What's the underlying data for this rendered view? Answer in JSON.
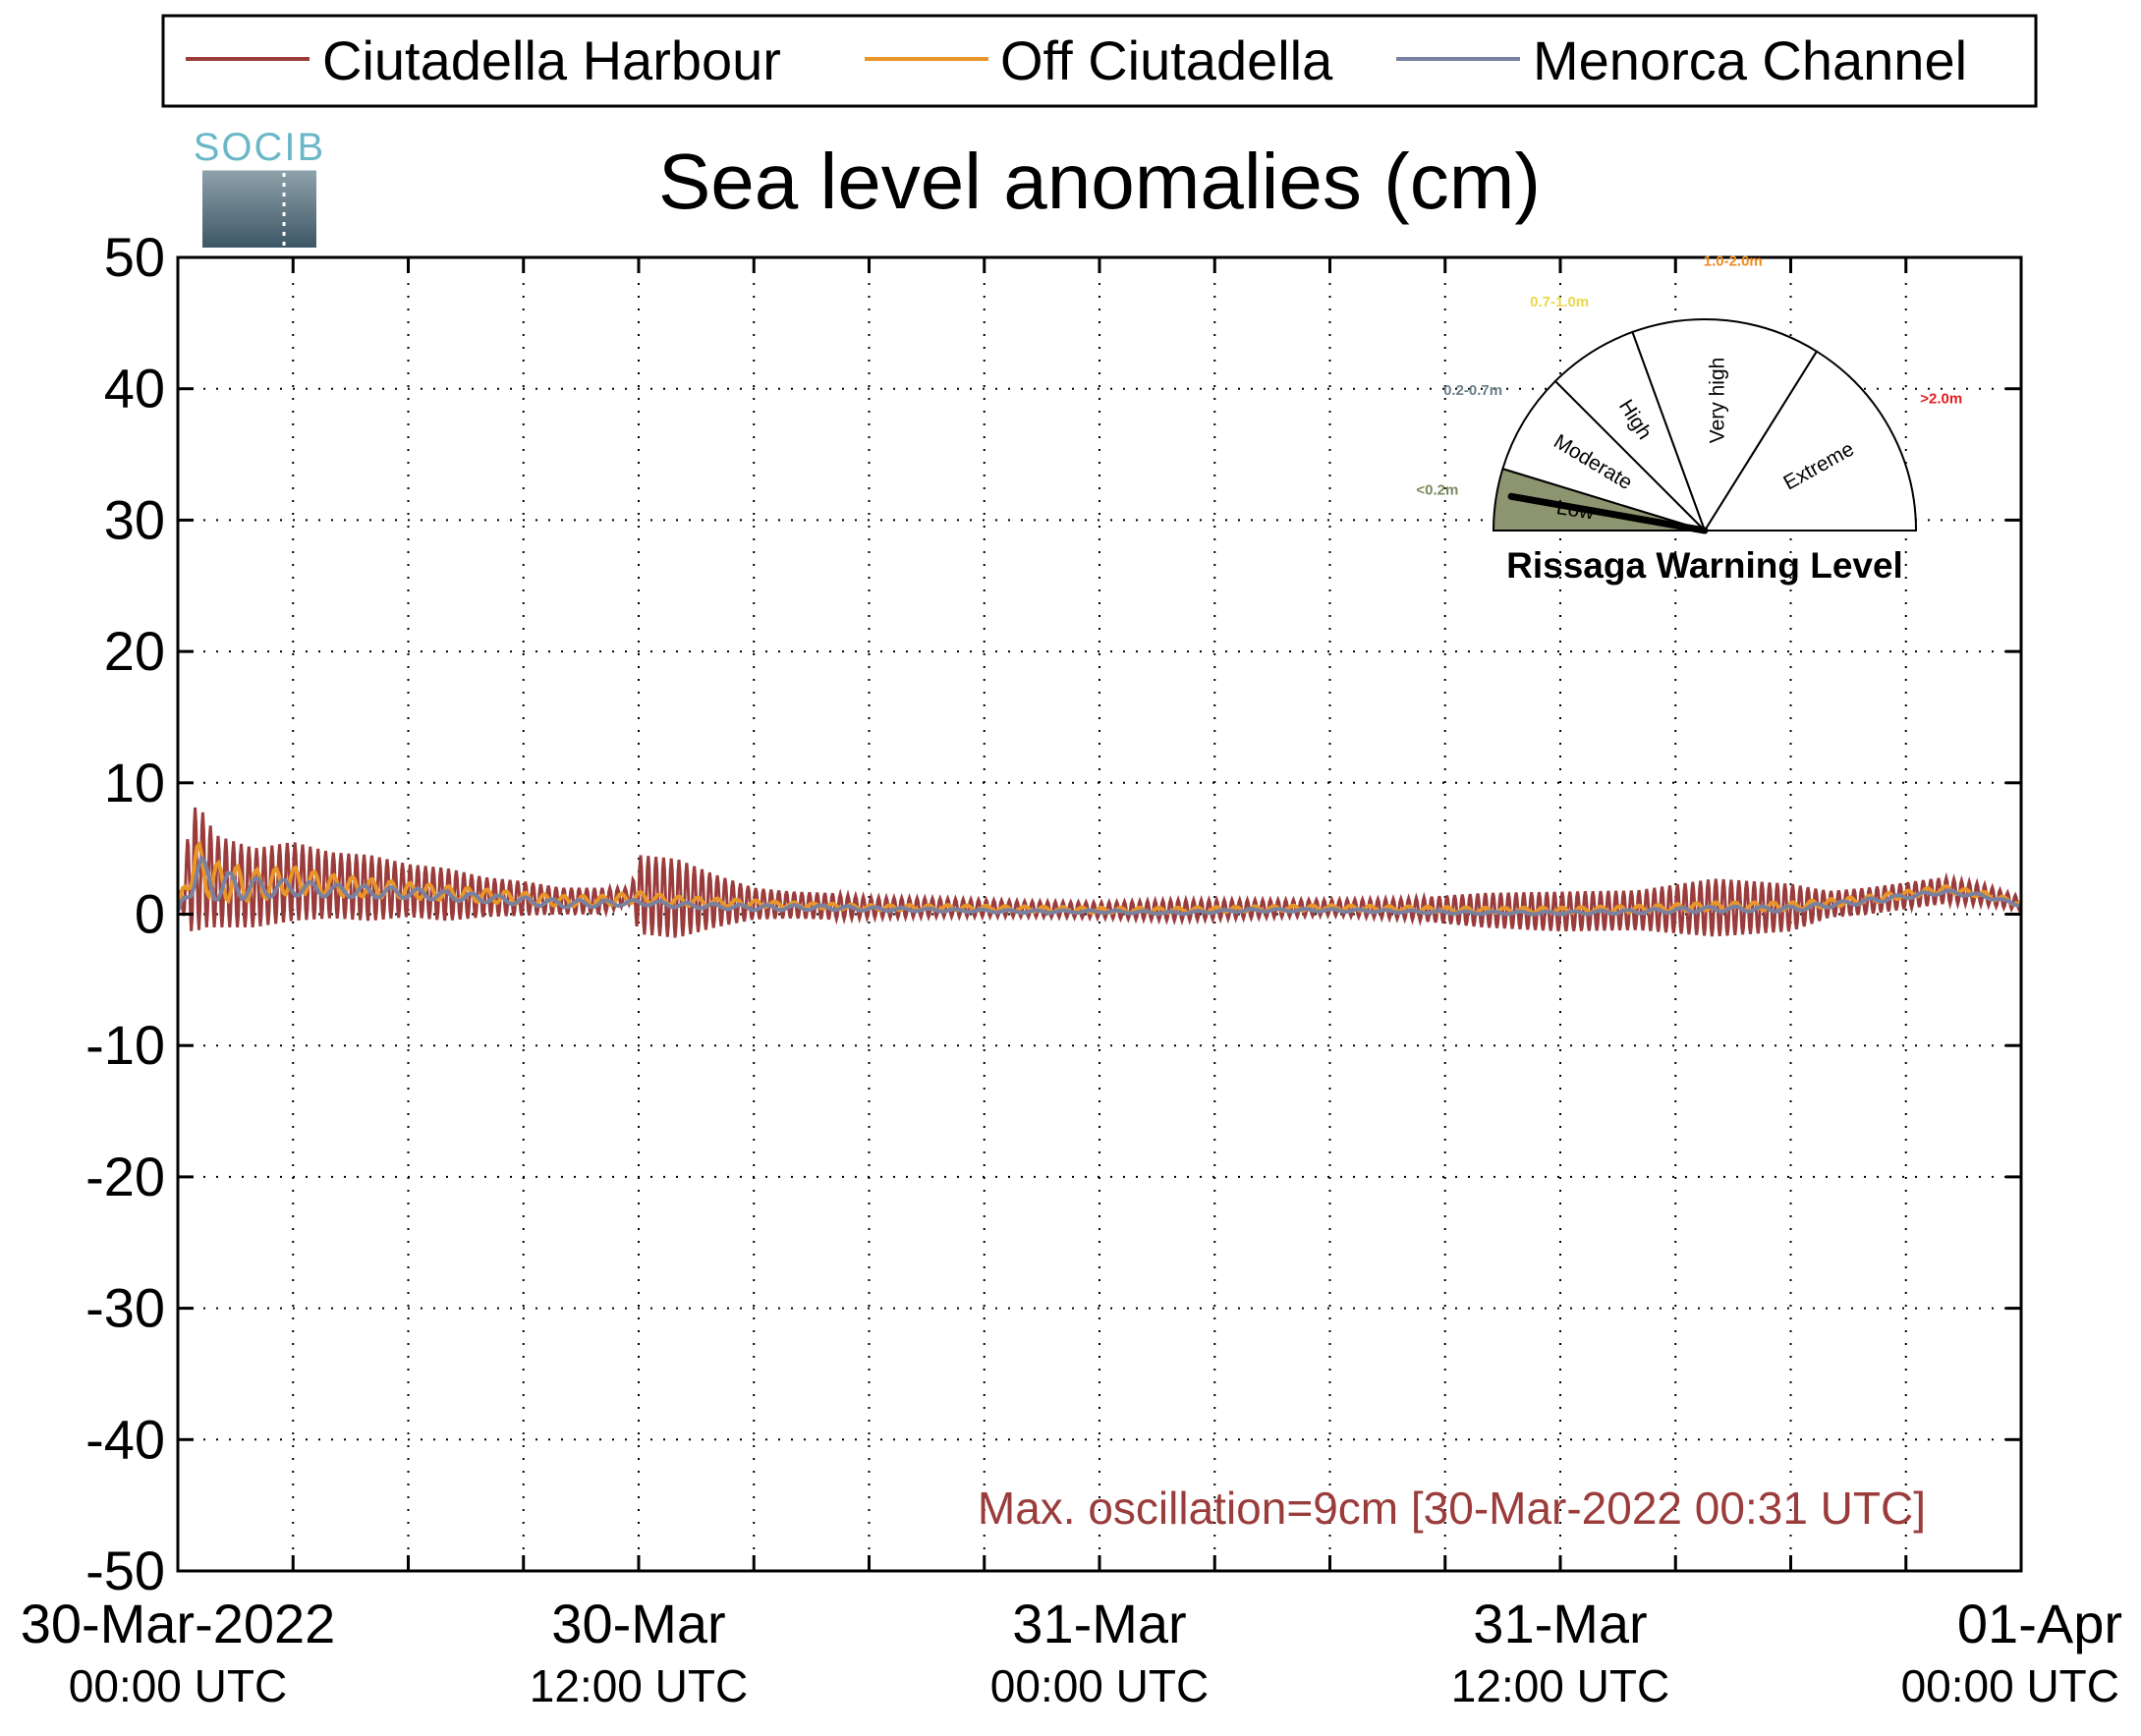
{
  "chart_data": {
    "type": "line",
    "title": "Sea level anomalies (cm)",
    "ylim": [
      -50,
      50
    ],
    "yticks": [
      50,
      40,
      30,
      20,
      10,
      0,
      -10,
      -20,
      -30,
      -40,
      -50
    ],
    "ytick_labels": [
      "50",
      "40",
      "30",
      "20",
      "10",
      "0",
      "-10",
      "-20",
      "-30",
      "-40",
      "-50"
    ],
    "xlim_hours": [
      0,
      48
    ],
    "grid": true,
    "grid_x_hours": [
      3,
      6,
      9,
      12,
      15,
      18,
      21,
      24,
      27,
      30,
      33,
      36,
      39,
      42,
      45
    ],
    "grid_y": [
      40,
      30,
      20,
      10,
      0,
      -10,
      -20,
      -30,
      -40
    ],
    "x_tick_labels": [
      {
        "hours": 0,
        "date": "30-Mar-2022",
        "time": "00:00 UTC"
      },
      {
        "hours": 12,
        "date": "30-Mar",
        "time": "12:00 UTC"
      },
      {
        "hours": 24,
        "date": "31-Mar",
        "time": "00:00 UTC"
      },
      {
        "hours": 36,
        "date": "31-Mar",
        "time": "12:00 UTC"
      },
      {
        "hours": 48,
        "date": "01-Apr",
        "time": "00:00 UTC"
      }
    ],
    "legend_position": "top",
    "series": [
      {
        "name": "Ciutadella Harbour",
        "color": "#9b3c3c",
        "baseline": {
          "x": [
            0,
            0.3,
            0.6,
            1,
            2,
            3,
            4,
            5,
            6,
            7,
            8,
            9,
            10,
            11,
            12,
            13,
            14,
            15,
            16,
            17,
            18,
            20,
            22,
            24,
            26,
            28,
            30,
            32,
            34,
            36,
            38,
            40,
            42,
            44,
            46,
            47,
            48
          ],
          "y": [
            0.5,
            3.0,
            3.5,
            2.5,
            2.0,
            2.5,
            2.2,
            2.0,
            1.8,
            1.5,
            1.3,
            1.2,
            1.0,
            1.0,
            1.5,
            1.2,
            1.0,
            0.8,
            0.7,
            0.6,
            0.5,
            0.5,
            0.4,
            0.3,
            0.3,
            0.4,
            0.5,
            0.4,
            0.3,
            0.2,
            0.3,
            0.5,
            0.5,
            1.0,
            1.8,
            1.5,
            0.8
          ]
        },
        "amplitude": {
          "x": [
            0,
            0.4,
            1,
            2,
            3,
            4,
            5,
            6,
            7,
            8,
            9,
            10,
            11,
            11.8,
            12,
            13,
            14,
            15,
            16,
            17,
            18,
            20,
            22,
            24,
            26,
            28,
            30,
            32,
            34,
            36,
            38,
            40,
            42,
            43,
            44,
            46,
            47,
            48
          ],
          "y": [
            0,
            5.0,
            3.5,
            3.0,
            3.0,
            2.5,
            2.5,
            2.0,
            2.0,
            1.5,
            1.3,
            1.0,
            1.0,
            0.6,
            3.0,
            3.0,
            2.0,
            1.2,
            1.0,
            1.0,
            0.8,
            0.7,
            0.6,
            0.6,
            0.8,
            0.7,
            0.6,
            0.8,
            1.3,
            1.5,
            1.5,
            2.2,
            1.8,
            1.0,
            1.0,
            1.0,
            0.8,
            0.5
          ]
        },
        "oscillation_period_hours": 0.2
      },
      {
        "name": "Off Ciutadella",
        "color": "#e8952a",
        "baseline": {
          "x": [
            0,
            0.3,
            0.6,
            1,
            2,
            3,
            4,
            5,
            6,
            7,
            8,
            9,
            10,
            11,
            12,
            13,
            14,
            15,
            16,
            17,
            18,
            20,
            22,
            24,
            26,
            28,
            30,
            32,
            34,
            36,
            38,
            40,
            42,
            44,
            46,
            47,
            48
          ],
          "y": [
            0.3,
            3.5,
            3.5,
            2.5,
            2.2,
            2.6,
            2.2,
            2.0,
            1.8,
            1.6,
            1.4,
            1.2,
            1.0,
            1.0,
            1.3,
            1.0,
            0.9,
            0.8,
            0.7,
            0.6,
            0.5,
            0.5,
            0.4,
            0.3,
            0.3,
            0.4,
            0.5,
            0.4,
            0.3,
            0.3,
            0.4,
            0.6,
            0.6,
            1.1,
            1.9,
            1.5,
            0.8
          ]
        },
        "amplitude": {
          "x": [
            0,
            0.4,
            1,
            2,
            3,
            4,
            6,
            8,
            10,
            12,
            14,
            16,
            20,
            24,
            30,
            36,
            40,
            44,
            48
          ],
          "y": [
            0,
            2.0,
            1.5,
            1.2,
            1.0,
            0.8,
            0.6,
            0.5,
            0.4,
            0.4,
            0.3,
            0.2,
            0.2,
            0.2,
            0.2,
            0.2,
            0.3,
            0.3,
            0.2
          ]
        },
        "oscillation_period_hours": 0.5
      },
      {
        "name": "Menorca Channel",
        "color": "#7a819e",
        "baseline": {
          "x": [
            0,
            0.3,
            0.6,
            1,
            2,
            3,
            4,
            5,
            6,
            7,
            8,
            9,
            10,
            11,
            12,
            13,
            14,
            15,
            16,
            17,
            18,
            20,
            22,
            24,
            26,
            28,
            30,
            32,
            34,
            36,
            38,
            40,
            42,
            44,
            46,
            47,
            48
          ],
          "y": [
            0.2,
            2.5,
            3.0,
            2.2,
            2.0,
            2.0,
            1.8,
            1.7,
            1.6,
            1.4,
            1.2,
            1.0,
            0.8,
            0.8,
            0.9,
            0.7,
            0.6,
            0.5,
            0.5,
            0.5,
            0.4,
            0.3,
            0.2,
            0.2,
            0.1,
            0.3,
            0.3,
            0.2,
            0.1,
            0.1,
            0.2,
            0.4,
            0.4,
            1.0,
            1.7,
            1.4,
            0.7
          ]
        },
        "amplitude": {
          "x": [
            0,
            0.4,
            1,
            2,
            3,
            4,
            6,
            8,
            10,
            12,
            16,
            20,
            24,
            30,
            36,
            40,
            44,
            48
          ],
          "y": [
            0,
            1.5,
            1.2,
            0.8,
            0.6,
            0.5,
            0.4,
            0.3,
            0.3,
            0.2,
            0.2,
            0.1,
            0.1,
            0.1,
            0.1,
            0.2,
            0.2,
            0.1
          ]
        },
        "oscillation_period_hours": 0.7
      }
    ],
    "annotation": {
      "text": "Max. oscillation=9cm [30-Mar-2022 00:31 UTC]",
      "color": "#9b3c3c"
    }
  },
  "logo": {
    "text": "SOCIB",
    "top_color": "#6ab7c8",
    "bottom_color": "#3e5766"
  },
  "gauge": {
    "title": "Rissaga Warning Level",
    "needle_value_deg": 170,
    "sectors": [
      {
        "label": "Low",
        "range_label": "<0.2m",
        "range_color": "#7b8a5c",
        "fill": "#8c9470",
        "start_deg": 180,
        "end_deg": 163
      },
      {
        "label": "Moderate",
        "range_label": "0.2-0.7m",
        "range_color": "#6a7f86",
        "fill": "#ffffff",
        "start_deg": 163,
        "end_deg": 135
      },
      {
        "label": "High",
        "range_label": "0.7-1.0m",
        "range_color": "#e8d84a",
        "fill": "#ffffff",
        "start_deg": 135,
        "end_deg": 110
      },
      {
        "label": "Very high",
        "range_label": "1.0-2.0m",
        "range_color": "#f08a1c",
        "fill": "#ffffff",
        "start_deg": 110,
        "end_deg": 58
      },
      {
        "label": "Extreme",
        "range_label": ">2.0m",
        "range_color": "#e31e1e",
        "fill": "#ffffff",
        "start_deg": 58,
        "end_deg": 0
      }
    ]
  }
}
